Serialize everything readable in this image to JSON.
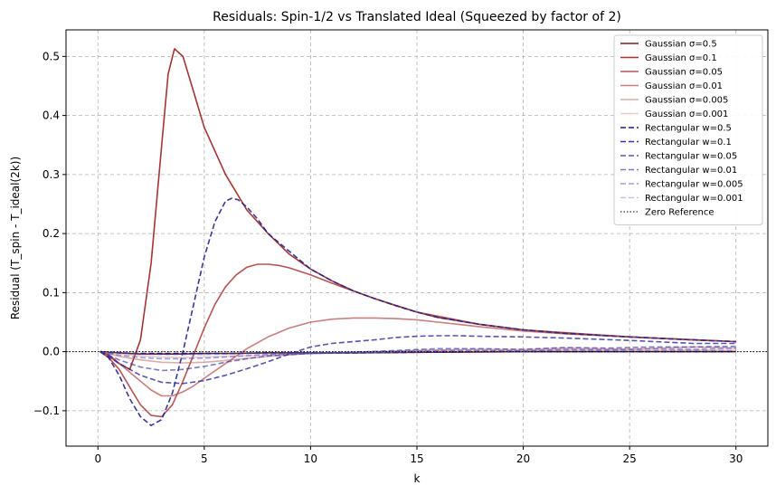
{
  "chart_data": {
    "type": "line",
    "title": "Residuals: Spin-1/2 vs Translated Ideal (Squeezed by factor of 2)",
    "xlabel": "k",
    "ylabel": "Residual (T_spin - T_ideal(2k))",
    "xlim": [
      -1.5,
      31.5
    ],
    "ylim": [
      -0.16,
      0.545
    ],
    "xticks": [
      0,
      5,
      10,
      15,
      20,
      25,
      30
    ],
    "yticks": [
      -0.1,
      0.0,
      0.1,
      0.2,
      0.3,
      0.4,
      0.5
    ],
    "ytick_labels": [
      "−0.1",
      "0.0",
      "0.1",
      "0.2",
      "0.3",
      "0.4",
      "0.5"
    ],
    "grid": true,
    "legend_position": "top-right",
    "series": [
      {
        "name": "Gaussian σ=0.5",
        "color": "#7b1f1f",
        "opacity": 1.0,
        "dash": "solid",
        "x": [
          0.1,
          0.5,
          1,
          1.5,
          2,
          2.5,
          3,
          3.5,
          4,
          5,
          6,
          8,
          10,
          12,
          15,
          20,
          25,
          30
        ],
        "y": [
          0,
          -0.001,
          -0.002,
          -0.003,
          -0.004,
          -0.004,
          -0.004,
          -0.004,
          -0.004,
          -0.003,
          -0.003,
          -0.002,
          -0.002,
          -0.002,
          -0.001,
          0,
          0,
          0
        ]
      },
      {
        "name": "Gaussian σ=0.1",
        "color": "#9e2a2a",
        "opacity": 0.95,
        "dash": "solid",
        "x": [
          0.1,
          0.5,
          1,
          1.5,
          2,
          2.5,
          3,
          3.3,
          3.6,
          4,
          4.5,
          5,
          5.5,
          6,
          7,
          8,
          9,
          10,
          11,
          12,
          13,
          14,
          15,
          16,
          18,
          20,
          22,
          25,
          28,
          30
        ],
        "y": [
          0,
          -0.005,
          -0.02,
          -0.03,
          0.02,
          0.15,
          0.35,
          0.47,
          0.513,
          0.5,
          0.44,
          0.38,
          0.34,
          0.3,
          0.24,
          0.2,
          0.165,
          0.14,
          0.12,
          0.103,
          0.09,
          0.078,
          0.067,
          0.058,
          0.046,
          0.037,
          0.031,
          0.025,
          0.02,
          0.017
        ]
      },
      {
        "name": "Gaussian σ=0.05",
        "color": "#a83838",
        "opacity": 0.85,
        "dash": "solid",
        "x": [
          0.1,
          0.5,
          1,
          1.5,
          2,
          2.5,
          3,
          3.5,
          4,
          4.5,
          5,
          5.5,
          6,
          6.5,
          7,
          7.5,
          8,
          8.5,
          9,
          10,
          11,
          12,
          13,
          15,
          18,
          20,
          25,
          30
        ],
        "y": [
          0,
          -0.01,
          -0.03,
          -0.06,
          -0.09,
          -0.108,
          -0.11,
          -0.09,
          -0.05,
          -0.005,
          0.04,
          0.08,
          0.11,
          0.13,
          0.143,
          0.148,
          0.148,
          0.146,
          0.142,
          0.13,
          0.116,
          0.103,
          0.09,
          0.067,
          0.046,
          0.037,
          0.025,
          0.017
        ]
      },
      {
        "name": "Gaussian σ=0.01",
        "color": "#b04848",
        "opacity": 0.7,
        "dash": "solid",
        "x": [
          0.1,
          0.5,
          1,
          1.5,
          2,
          2.5,
          3,
          3.5,
          4,
          4.5,
          5,
          6,
          7,
          8,
          9,
          10,
          11,
          12,
          13,
          14,
          15,
          16,
          17,
          18,
          20,
          22,
          25,
          28,
          30
        ],
        "y": [
          0,
          -0.008,
          -0.02,
          -0.035,
          -0.05,
          -0.065,
          -0.075,
          -0.075,
          -0.068,
          -0.058,
          -0.045,
          -0.02,
          0.005,
          0.025,
          0.04,
          0.05,
          0.055,
          0.057,
          0.057,
          0.056,
          0.054,
          0.05,
          0.046,
          0.042,
          0.035,
          0.03,
          0.025,
          0.02,
          0.017
        ]
      },
      {
        "name": "Gaussian σ=0.005",
        "color": "#c06868",
        "opacity": 0.55,
        "dash": "solid",
        "x": [
          0.1,
          0.5,
          1,
          2,
          3,
          4,
          5,
          6,
          8,
          10,
          12,
          15,
          18,
          20,
          22,
          25,
          28,
          30
        ],
        "y": [
          0,
          -0.003,
          -0.008,
          -0.014,
          -0.018,
          -0.019,
          -0.018,
          -0.015,
          -0.008,
          -0.003,
          -0.001,
          0.002,
          0.004,
          0.003,
          0.006,
          0.004,
          0.008,
          0.006
        ]
      },
      {
        "name": "Gaussian σ=0.001",
        "color": "#c89090",
        "opacity": 0.45,
        "dash": "solid",
        "x": [
          0.1,
          0.5,
          1,
          2,
          3,
          4,
          5,
          6,
          8,
          10,
          12,
          15,
          18,
          20,
          22,
          25,
          28,
          30
        ],
        "y": [
          0,
          -0.002,
          -0.004,
          -0.007,
          -0.009,
          -0.01,
          -0.009,
          -0.008,
          -0.005,
          -0.003,
          -0.002,
          0,
          0.001,
          0.002,
          0.003,
          0.002,
          0.003,
          0.002
        ]
      },
      {
        "name": "Rectangular w=0.5",
        "color": "#1a1a80",
        "opacity": 1.0,
        "dash": "dashed",
        "x": [
          0.1,
          0.5,
          1,
          2,
          3,
          4,
          5,
          6,
          8,
          10,
          12,
          15,
          18,
          20,
          22,
          25,
          28,
          30
        ],
        "y": [
          0,
          -0.001,
          -0.002,
          -0.003,
          -0.003,
          -0.003,
          -0.003,
          -0.003,
          -0.002,
          -0.002,
          -0.002,
          -0.001,
          0,
          0,
          0,
          0,
          0,
          0
        ]
      },
      {
        "name": "Rectangular w=0.1",
        "color": "#22228c",
        "opacity": 0.9,
        "dash": "dashed",
        "x": [
          0.1,
          0.5,
          1,
          1.5,
          2,
          2.5,
          3,
          3.5,
          4,
          4.5,
          5,
          5.5,
          6,
          6.3,
          6.6,
          7,
          7.5,
          8,
          9,
          10,
          11,
          12,
          13,
          14,
          15,
          16,
          18,
          20,
          22,
          25,
          28,
          30
        ],
        "y": [
          0,
          -0.01,
          -0.04,
          -0.08,
          -0.11,
          -0.125,
          -0.115,
          -0.07,
          0.0,
          0.08,
          0.16,
          0.22,
          0.255,
          0.26,
          0.257,
          0.245,
          0.225,
          0.2,
          0.17,
          0.14,
          0.12,
          0.103,
          0.09,
          0.078,
          0.067,
          0.058,
          0.046,
          0.037,
          0.031,
          0.025,
          0.02,
          0.017
        ]
      },
      {
        "name": "Rectangular w=0.05",
        "color": "#2b2b98",
        "opacity": 0.8,
        "dash": "dashed",
        "x": [
          0.1,
          0.5,
          1,
          2,
          3,
          4,
          5,
          6,
          7,
          8,
          9,
          10,
          11,
          12,
          13,
          14,
          15,
          16,
          17,
          18,
          20,
          22,
          25,
          28,
          30
        ],
        "y": [
          0,
          -0.008,
          -0.02,
          -0.04,
          -0.052,
          -0.054,
          -0.049,
          -0.04,
          -0.029,
          -0.017,
          -0.004,
          0.008,
          0.014,
          0.017,
          0.02,
          0.024,
          0.026,
          0.027,
          0.027,
          0.026,
          0.025,
          0.023,
          0.019,
          0.014,
          0.014
        ]
      },
      {
        "name": "Rectangular w=0.01",
        "color": "#3535a5",
        "opacity": 0.65,
        "dash": "dashed",
        "x": [
          0.1,
          0.5,
          1,
          2,
          3,
          4,
          5,
          6,
          7,
          8,
          10,
          12,
          14,
          16,
          18,
          20,
          22,
          24,
          26,
          28,
          30
        ],
        "y": [
          0,
          -0.006,
          -0.014,
          -0.026,
          -0.032,
          -0.03,
          -0.025,
          -0.018,
          -0.012,
          -0.007,
          -0.003,
          -0.001,
          0.002,
          0.005,
          0.005,
          0.004,
          0.007,
          0.006,
          0.008,
          0.008,
          0.009
        ]
      },
      {
        "name": "Rectangular w=0.005",
        "color": "#4040b0",
        "opacity": 0.5,
        "dash": "dashed",
        "x": [
          0.1,
          0.5,
          1,
          2,
          3,
          4,
          5,
          6,
          8,
          10,
          12,
          14,
          16,
          18,
          20,
          22,
          24,
          26,
          28,
          30
        ],
        "y": [
          0,
          -0.003,
          -0.006,
          -0.01,
          -0.012,
          -0.012,
          -0.011,
          -0.009,
          -0.005,
          -0.003,
          -0.002,
          0.0,
          0.002,
          0.002,
          0.001,
          0.004,
          0.003,
          0.005,
          0.004,
          0.006
        ]
      },
      {
        "name": "Rectangular w=0.001",
        "color": "#6a6ac0",
        "opacity": 0.4,
        "dash": "dashed",
        "x": [
          0.1,
          0.5,
          1,
          2,
          3,
          4,
          5,
          6,
          8,
          10,
          12,
          15,
          18,
          20,
          22,
          25,
          28,
          30
        ],
        "y": [
          0,
          -0.001,
          -0.002,
          -0.004,
          -0.005,
          -0.005,
          -0.005,
          -0.004,
          -0.003,
          -0.002,
          -0.001,
          0,
          0.001,
          0.001,
          0.002,
          0.002,
          0.002,
          0.002
        ]
      },
      {
        "name": "Zero Reference",
        "color": "#000000",
        "opacity": 1.0,
        "dash": "dotted",
        "x": [
          -1.5,
          31.5
        ],
        "y": [
          0,
          0
        ]
      }
    ]
  }
}
